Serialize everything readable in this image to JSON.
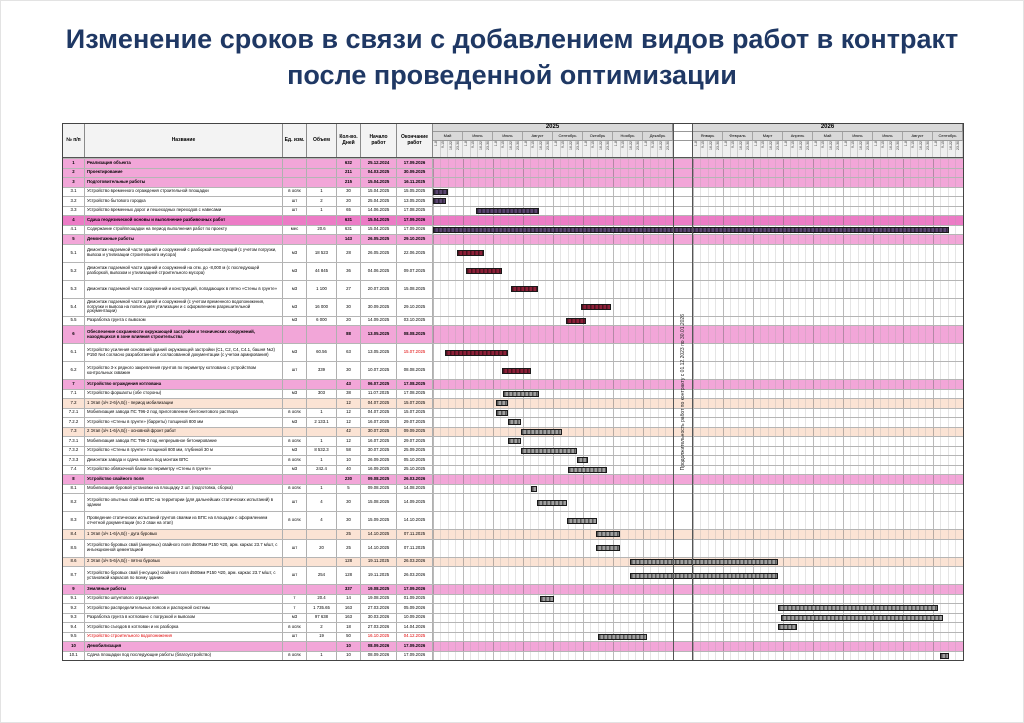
{
  "title": {
    "line1": "Изменение сроков в связи с добавлением видов работ в контракт",
    "line2": "после проведенной оптимизации"
  },
  "colors": {
    "title": "#1F3864",
    "section_pink": "#F2A6D8",
    "section_pink_dark": "#EC7CC6",
    "stage_orange": "#FBE3D4",
    "bar_maroon": "#8C2038",
    "bar_purple": "#5A4670",
    "bar_gray": "#9E9E9E",
    "alert_red": "#E00000",
    "header_gray": "#D9D9D9"
  },
  "chart_data": {
    "type": "table",
    "subtype": "gantt",
    "title": "Изменение сроков в связи с добавлением видов работ в контракт после проведенной оптимизации",
    "headers": {
      "num": "№ п/п",
      "name": "Название",
      "unit": "Ед. изм.",
      "vol": "Объем",
      "days": "Кол-во. Дней",
      "start": "Начало работ",
      "end": "Окончание работ"
    },
    "timeline": {
      "years": [
        {
          "label": "2025",
          "months": [
            "Май",
            "Июнь",
            "Июль",
            "Август",
            "Сентябрь",
            "Октябрь",
            "Ноябрь",
            "Декабрь"
          ]
        },
        {
          "label": "2026",
          "months": [
            "Январь",
            "Февраль",
            "Март",
            "Апрель",
            "Май",
            "Июнь",
            "Июль",
            "Август",
            "Сентябрь"
          ]
        }
      ],
      "week_labels": [
        "1-8",
        "9-15",
        "16-22",
        "23-30"
      ],
      "separator_label": "Продолжительность работ по контракту с 01.12.2023 по 30.01.2026"
    },
    "tasks": [
      {
        "num": "1",
        "name": "Реализация объекта",
        "type": "section",
        "days": "632",
        "start": "25.12.2024",
        "end": "17.09.2026"
      },
      {
        "num": "2",
        "name": "Проектирование",
        "type": "section",
        "days": "211",
        "start": "04.03.2025",
        "end": "30.09.2025"
      },
      {
        "num": "3",
        "name": "Подготовительные работы",
        "type": "section",
        "days": "215",
        "start": "15.04.2025",
        "end": "16.11.2025"
      },
      {
        "num": "3.1",
        "name": "Устройство временного ограждения строительной площадки",
        "unit": "в осях",
        "vol": "1",
        "days": "30",
        "start": "15.04.2025",
        "end": "15.05.2025",
        "bar": "purple"
      },
      {
        "num": "3.2",
        "name": "Устройство бытового городка",
        "unit": "шт",
        "vol": "2",
        "days": "20",
        "start": "25.04.2025",
        "end": "13.05.2025",
        "bar": "purple"
      },
      {
        "num": "3.3",
        "name": "Устройство временных дорог и пешеходных переходов с навесами",
        "unit": "шт",
        "vol": "1",
        "days": "65",
        "start": "14.06.2025",
        "end": "17.08.2025",
        "bar": "purple"
      },
      {
        "num": "4",
        "name": "Сдача геодезической основы и выполнение разбивочных работ",
        "type": "section",
        "variant": "dark",
        "days": "631",
        "start": "15.04.2025",
        "end": "17.09.2026"
      },
      {
        "num": "4.1",
        "name": "Содержание стройплощадки на период выполнения работ по проекту",
        "unit": "мес",
        "vol": "20.6",
        "days": "631",
        "start": "15.04.2025",
        "end": "17.09.2026",
        "bar": "purple"
      },
      {
        "num": "5",
        "name": "Демонтажные работы",
        "type": "section",
        "days": "143",
        "start": "26.05.2025",
        "end": "29.10.2025"
      },
      {
        "num": "5.1",
        "name": "Демонтаж надземной части зданий и сооружений с разборкой конструкций (с учетом погрузки, вывоза и утилизации строительного мусора)",
        "unit": "м3",
        "vol": "18 523",
        "days": "28",
        "start": "26.05.2025",
        "end": "22.06.2025",
        "h": 2,
        "bar": "maroon"
      },
      {
        "num": "5.2",
        "name": "Демонтаж подземной части зданий и сооружений на отм. до -8,000 м (с последующей разборкой, вывозом и утилизацией строительного мусора)",
        "unit": "м3",
        "vol": "44 845",
        "days": "36",
        "start": "04.06.2025",
        "end": "09.07.2025",
        "h": 2,
        "bar": "maroon"
      },
      {
        "num": "5.3",
        "name": "Демонтаж подземной части сооружений и конструкций, попадающих в пятно «Стены в грунте»",
        "unit": "м3",
        "vol": "1 100",
        "days": "27",
        "start": "20.07.2025",
        "end": "15.08.2025",
        "h": 2,
        "bar": "maroon"
      },
      {
        "num": "5.4",
        "name": "Демонтаж подземной части зданий и сооружений (с учетом временного водопонижения, погрузки и вывоза на полигон для утилизации и с оформлением разрешительной документации)",
        "unit": "м3",
        "vol": "16 000",
        "days": "30",
        "start": "30.09.2025",
        "end": "29.10.2025",
        "h": 2,
        "bar": "maroon"
      },
      {
        "num": "5.5",
        "name": "Разработка грунта с вывозом",
        "unit": "м3",
        "vol": "6 000",
        "days": "20",
        "start": "14.09.2025",
        "end": "03.10.2025",
        "bar": "maroon"
      },
      {
        "num": "6",
        "name": "Обеспечение сохранности окружающей застройки и технических сооружений, находящихся в зоне влияния строительства",
        "type": "section",
        "days": "88",
        "start": "13.05.2025",
        "end": "08.08.2025",
        "h": 2
      },
      {
        "num": "6.1",
        "name": "Устройство усиления оснований зданий окружающей застройки (С1, С2, С4, С4.1, башня №2) Р150 №4 согласно разработанной и согласованной документации (с учетом армирования)",
        "unit": "м3",
        "vol": "60.56",
        "days": "63",
        "start": "13.05.2025",
        "end": "15.07.2025",
        "h": 2,
        "bar": "maroon",
        "redEnd": true
      },
      {
        "num": "6.2",
        "name": "Устройство 3-х рядного закрепления грунтов по периметру котлована с устройством контрольных скважин",
        "unit": "шт",
        "vol": "339",
        "days": "30",
        "start": "10.07.2025",
        "end": "08.08.2025",
        "h": 2,
        "bar": "maroon"
      },
      {
        "num": "7",
        "name": "Устройство ограждения котлована",
        "type": "section",
        "days": "43",
        "start": "06.07.2025",
        "end": "17.08.2025"
      },
      {
        "num": "7.1",
        "name": "Устройство форшахты (обе стороны)",
        "unit": "м3",
        "vol": "303",
        "days": "38",
        "start": "11.07.2025",
        "end": "17.08.2025",
        "bar": "gray"
      },
      {
        "num": "7.2",
        "name": "1 Этап (з/ч 2-6(А,Б)) - период мобилизации",
        "type": "stage",
        "days": "12",
        "start": "04.07.2025",
        "end": "15.07.2025",
        "bar": "gray"
      },
      {
        "num": "7.2.1",
        "name": "Мобилизация завода ПС Т96-2 под приготовление бентонитового раствора",
        "unit": "в осях",
        "vol": "1",
        "days": "12",
        "start": "04.07.2025",
        "end": "15.07.2025",
        "bar": "gray"
      },
      {
        "num": "7.2.2",
        "name": "Устройство «Стены в грунте» (барреты) толщиной 800 мм",
        "unit": "м3",
        "vol": "2 133.1",
        "days": "12",
        "start": "16.07.2025",
        "end": "29.07.2025",
        "bar": "gray"
      },
      {
        "num": "7.3",
        "name": "2 Этап (з/ч 1-6(А,Б)) - основной фронт работ",
        "type": "stage",
        "days": "42",
        "start": "30.07.2025",
        "end": "09.09.2025",
        "bar": "gray"
      },
      {
        "num": "7.3.1",
        "name": "Мобилизация завода ПС Т96-3 под непрерывное бетонирование",
        "unit": "в осях",
        "vol": "1",
        "days": "12",
        "start": "16.07.2025",
        "end": "29.07.2025",
        "bar": "gray"
      },
      {
        "num": "7.3.2",
        "name": "Устройство «Стены в грунте» толщиной 800 мм, глубиной 30 м",
        "unit": "м3",
        "vol": "8 532.3",
        "days": "58",
        "start": "30.07.2025",
        "end": "25.09.2025",
        "bar": "gray"
      },
      {
        "num": "7.3.3",
        "name": "Демонтаж завода и сдача навеса под монтаж ВПС",
        "unit": "в осях",
        "vol": "1",
        "days": "10",
        "start": "26.09.2025",
        "end": "05.10.2025",
        "bar": "gray"
      },
      {
        "num": "7.4",
        "name": "Устройство обвязочной балки по периметру «Стены в грунте»",
        "unit": "м3",
        "vol": "242.4",
        "days": "40",
        "start": "16.09.2025",
        "end": "25.10.2025",
        "bar": "gray"
      },
      {
        "num": "8",
        "name": "Устройство свайного поля",
        "type": "section",
        "days": "230",
        "start": "09.08.2025",
        "end": "26.03.2026"
      },
      {
        "num": "8.1",
        "name": "Мобилизация буровой установки на площадку 2 шт. (подготовка, сборка)",
        "unit": "в осях",
        "vol": "1",
        "days": "5",
        "start": "09.08.2025",
        "end": "14.08.2025",
        "bar": "gray"
      },
      {
        "num": "8.2",
        "name": "Устройство опытных свай из ВПС на территории (для дальнейших статических испытаний) в здании",
        "unit": "шт",
        "vol": "4",
        "days": "30",
        "start": "15.08.2025",
        "end": "14.09.2025",
        "h": 2,
        "bar": "gray"
      },
      {
        "num": "8.3",
        "name": "Проведение статических испытаний грунтов сваями из ВПС на площадке с оформлением отчетной документации (по 2 сваи на этап)",
        "unit": "в осях",
        "vol": "4",
        "days": "30",
        "start": "15.09.2025",
        "end": "14.10.2025",
        "h": 2,
        "bar": "gray"
      },
      {
        "num": "8.4",
        "name": "1 Этап (з/ч 1-6(А,Б)) - дуга буровых",
        "type": "stage",
        "days": "25",
        "start": "14.10.2025",
        "end": "07.11.2025",
        "bar": "gray"
      },
      {
        "num": "8.5",
        "name": "Устройство буровых свай (анкерных) свайного поля d500мм Р150 Ч20, арм. каркас 23.7 м/шт, с инъекционной цементацией",
        "unit": "шт",
        "vol": "20",
        "days": "25",
        "start": "14.10.2025",
        "end": "07.11.2025",
        "h": 2,
        "bar": "gray"
      },
      {
        "num": "8.6",
        "name": "2 Этап (з/ч 5-6(А,Б)) - пятно буровых",
        "type": "stage",
        "days": "128",
        "start": "19.11.2025",
        "end": "26.03.2026",
        "bar": "gray"
      },
      {
        "num": "8.7",
        "name": "Устройство буровых свай (несущих) свайного поля d500мм Р150 Ч20, арм. каркас 23.7 м/шт, с установкой каркасов по всему зданию",
        "unit": "шт",
        "vol": "254",
        "days": "128",
        "start": "19.11.2025",
        "end": "26.03.2026",
        "h": 2,
        "bar": "gray"
      },
      {
        "num": "9",
        "name": "Земляные работы",
        "type": "section",
        "days": "337",
        "start": "19.08.2025",
        "end": "17.09.2026"
      },
      {
        "num": "9.1",
        "name": "Устройство шпунтового ограждения",
        "unit": "т",
        "vol": "20.4",
        "days": "14",
        "start": "19.08.2025",
        "end": "01.09.2025",
        "bar": "gray"
      },
      {
        "num": "9.2",
        "name": "Устройство распределительных поясов и распорной системы",
        "unit": "т",
        "vol": "1 735.65",
        "days": "163",
        "start": "27.03.2026",
        "end": "05.09.2026",
        "bar": "gray"
      },
      {
        "num": "9.3",
        "name": "Разработка грунта в котловане с погрузкой и вывозом",
        "unit": "м3",
        "vol": "97 638",
        "days": "163",
        "start": "30.03.2026",
        "end": "10.09.2026",
        "bar": "gray"
      },
      {
        "num": "9.4",
        "name": "Устройство съездов в котлован и их разборка",
        "unit": "в осях",
        "vol": "2",
        "days": "18",
        "start": "27.03.2026",
        "end": "14.04.2026",
        "bar": "gray"
      },
      {
        "num": "9.5",
        "name": "Устройство строительного водопонижения",
        "unit": "шт",
        "vol": "19",
        "days": "50",
        "start": "16.10.2025",
        "end": "04.12.2025",
        "bar": "gray",
        "red": true
      },
      {
        "num": "10",
        "name": "Демобилизация",
        "type": "section",
        "days": "10",
        "start": "08.09.2026",
        "end": "17.09.2026"
      },
      {
        "num": "10.1",
        "name": "Сдача площадки под последующие работы (благоустройство)",
        "unit": "в осях",
        "vol": "1",
        "days": "10",
        "start": "08.09.2026",
        "end": "17.09.2026",
        "bar": "gray"
      }
    ]
  }
}
